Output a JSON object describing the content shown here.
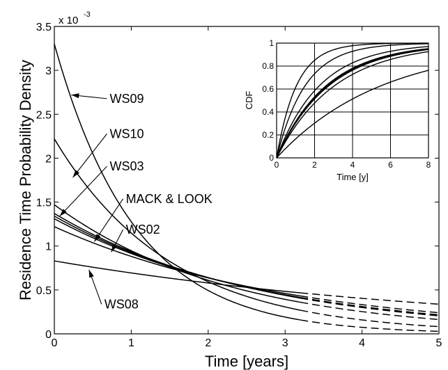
{
  "chart_data": {
    "main": {
      "type": "line",
      "xlabel": "Time [years]",
      "ylabel": "Residence Time Probability Density",
      "exponent_label": "x 10",
      "exponent_power": "-3",
      "xlim": [
        0,
        5
      ],
      "ylim": [
        0,
        3.5
      ],
      "xticks": [
        0,
        1,
        2,
        3,
        4,
        5
      ],
      "yticks": [
        0,
        0.5,
        1,
        1.5,
        2,
        2.5,
        3,
        3.5
      ],
      "ytick_labels": [
        "0",
        "0.5",
        "1",
        "1.5",
        "2",
        "2.5",
        "3",
        "3.5"
      ],
      "solid_until": 3.2,
      "grid": false,
      "series": [
        {
          "label": "WS09",
          "y0": 3.3,
          "rate": 0.95
        },
        {
          "label": "WS10",
          "y0": 2.22,
          "rate": 0.66
        },
        {
          "label": "WS03",
          "y0": 1.47,
          "rate": 0.44
        },
        {
          "label": "MACK & LOOK",
          "y0": 1.37,
          "rate": 0.38
        },
        {
          "label": "",
          "y0": 1.34,
          "rate": 0.37
        },
        {
          "label": "",
          "y0": 1.31,
          "rate": 0.36
        },
        {
          "label": "WS02",
          "y0": 1.22,
          "rate": 0.325
        },
        {
          "label": "WS08",
          "y0": 0.83,
          "rate": 0.18
        }
      ],
      "annotations": [
        {
          "text": "WS09",
          "x": 0.72,
          "y": 2.63,
          "tip_x": 0.22,
          "tip_y": 2.72
        },
        {
          "text": "WS10",
          "x": 0.72,
          "y": 2.23,
          "tip_x": 0.24,
          "tip_y": 1.78
        },
        {
          "text": "WS03",
          "x": 0.72,
          "y": 1.86,
          "tip_x": 0.07,
          "tip_y": 1.34
        },
        {
          "text": "MACK & LOOK",
          "x": 0.93,
          "y": 1.49,
          "tip_x": 0.52,
          "tip_y": 1.05
        },
        {
          "text": "WS02",
          "x": 0.93,
          "y": 1.14,
          "tip_x": 0.74,
          "tip_y": 0.93
        },
        {
          "text": "WS08",
          "x": 0.65,
          "y": 0.29,
          "tip_x": 0.45,
          "tip_y": 0.73
        }
      ]
    },
    "inset": {
      "type": "line",
      "xlabel": "Time [y]",
      "ylabel": "CDF",
      "xlim": [
        0,
        8
      ],
      "ylim": [
        0,
        1
      ],
      "xticks": [
        0,
        2,
        4,
        6,
        8
      ],
      "yticks": [
        0,
        0.2,
        0.4,
        0.6,
        0.8,
        1
      ],
      "ytick_labels": [
        "0",
        "0.2",
        "0.4",
        "0.6",
        "0.8",
        "1"
      ],
      "grid": true,
      "rates": [
        0.95,
        0.66,
        0.44,
        0.38,
        0.37,
        0.36,
        0.325,
        0.18
      ]
    }
  }
}
